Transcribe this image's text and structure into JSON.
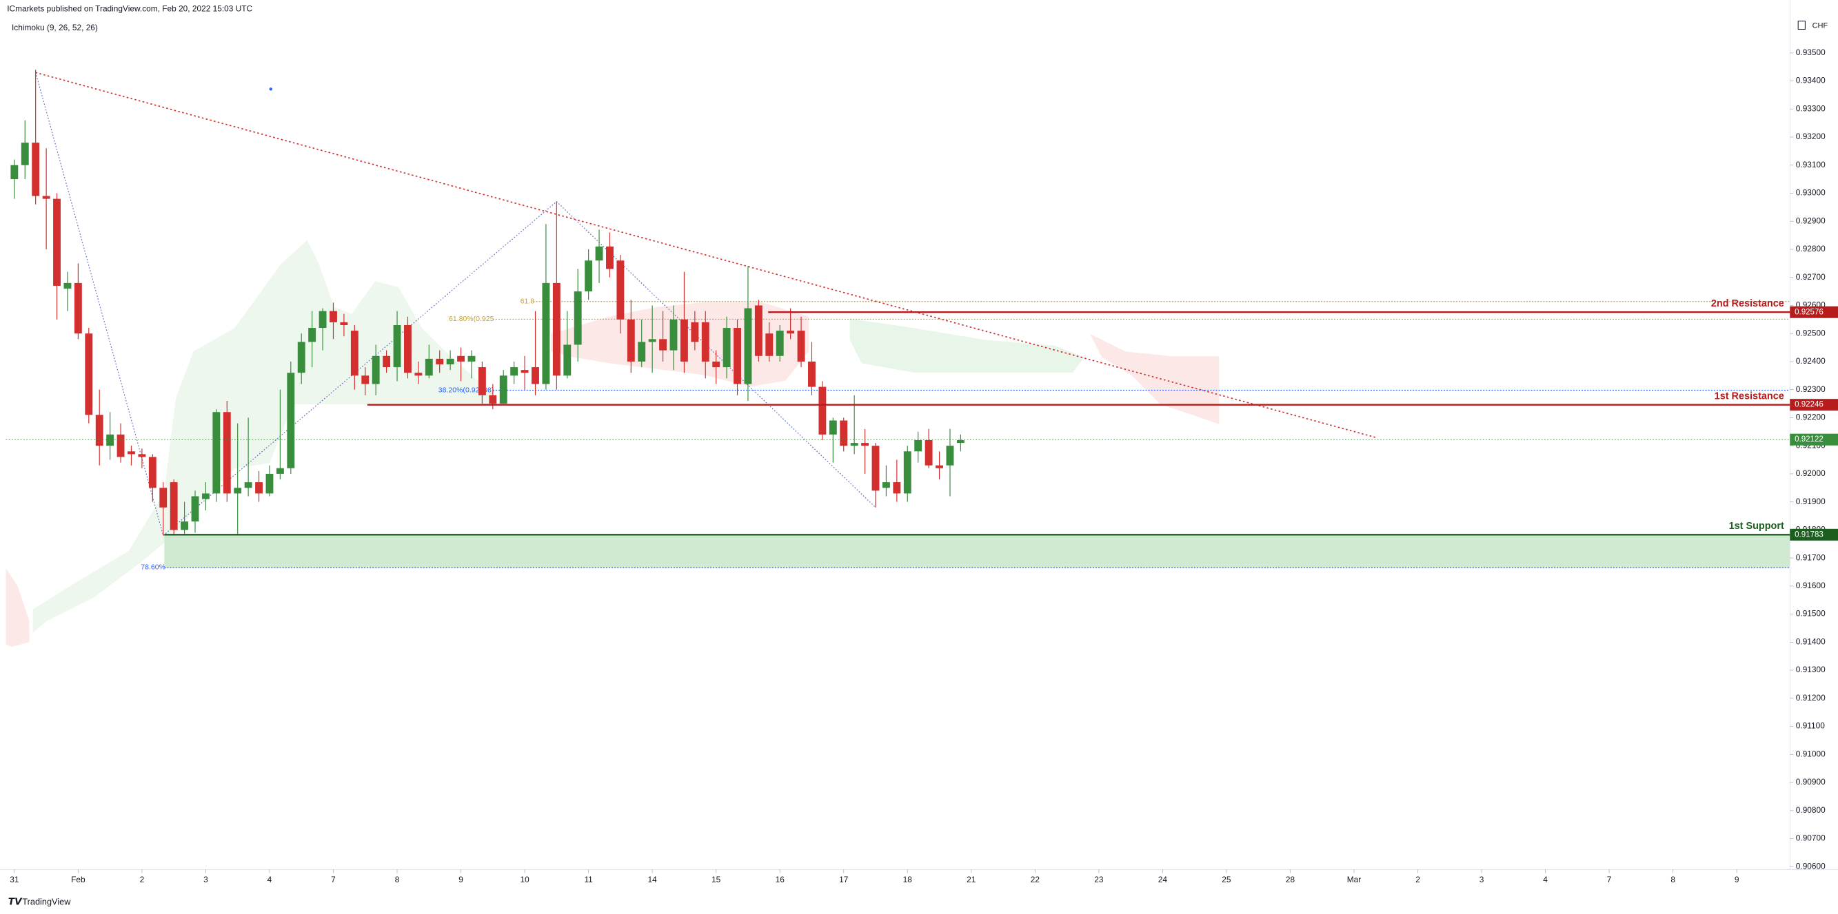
{
  "header": {
    "publisher": "ICmarkets published on TradingView.com, Feb 20, 2022 15:03 UTC",
    "indicator": "Ichimoku (9, 26, 52, 26)",
    "currency": "CHF"
  },
  "footer": {
    "brand": "TradingView"
  },
  "chart_data": {
    "type": "candlestick",
    "up_color": "#388e3c",
    "down_color": "#d32f2f",
    "open": [
      0.9305,
      0.931,
      0.9318,
      0.9299,
      0.9298,
      0.9266,
      0.9268,
      0.925,
      0.9221,
      0.921,
      0.9214,
      0.9208,
      0.9207,
      0.9206,
      0.9195,
      0.9197,
      0.918,
      0.9183,
      0.9191,
      0.9193,
      0.9222,
      0.9193,
      0.9195,
      0.9197,
      0.9193,
      0.92,
      0.9202,
      0.9236,
      0.9247,
      0.9252,
      0.9258,
      0.9254,
      0.9251,
      0.9235,
      0.9232,
      0.9242,
      0.9238,
      0.9253,
      0.9236,
      0.9235,
      0.9241,
      0.9239,
      0.9242,
      0.924,
      0.9238,
      0.9228,
      0.9225,
      0.9235,
      0.9237,
      0.9238,
      0.9232,
      0.9268,
      0.9235,
      0.9246,
      0.9265,
      0.9276,
      0.9281,
      0.9276,
      0.9255,
      0.924,
      0.9247,
      0.9248,
      0.9244,
      0.9255,
      0.9254,
      0.9254,
      0.924,
      0.9238,
      0.9252,
      0.9232,
      0.926,
      0.925,
      0.9242,
      0.9251,
      0.9251,
      0.924,
      0.9231,
      0.9214,
      0.9219,
      0.921,
      0.9211,
      0.921,
      0.9195,
      0.9197,
      0.9193,
      0.9208,
      0.9212,
      0.9203,
      0.9203,
      0.9211
    ],
    "high": [
      0.9312,
      0.9326,
      0.9344,
      0.9316,
      0.93,
      0.9272,
      0.9275,
      0.9252,
      0.923,
      0.9222,
      0.9218,
      0.921,
      0.9209,
      0.9207,
      0.9197,
      0.9198,
      0.919,
      0.9194,
      0.9197,
      0.9223,
      0.9226,
      0.9218,
      0.922,
      0.9201,
      0.9203,
      0.923,
      0.924,
      0.925,
      0.9258,
      0.9259,
      0.9261,
      0.9257,
      0.9253,
      0.9238,
      0.9246,
      0.9244,
      0.9258,
      0.9256,
      0.924,
      0.9246,
      0.9244,
      0.9244,
      0.9245,
      0.9244,
      0.924,
      0.9232,
      0.9237,
      0.924,
      0.9242,
      0.9258,
      0.9289,
      0.9297,
      0.9258,
      0.9273,
      0.928,
      0.9287,
      0.9286,
      0.9278,
      0.9262,
      0.9255,
      0.926,
      0.9258,
      0.926,
      0.9272,
      0.9258,
      0.9258,
      0.9244,
      0.9256,
      0.9255,
      0.9274,
      0.9262,
      0.9254,
      0.9253,
      0.9259,
      0.9256,
      0.9247,
      0.9233,
      0.922,
      0.922,
      0.9228,
      0.9216,
      0.9211,
      0.9203,
      0.9205,
      0.921,
      0.9215,
      0.9216,
      0.9208,
      0.9216,
      0.9214
    ],
    "low": [
      0.9298,
      0.9305,
      0.9296,
      0.928,
      0.9255,
      0.9258,
      0.9248,
      0.9218,
      0.9203,
      0.9205,
      0.9204,
      0.9203,
      0.9202,
      0.919,
      0.9178,
      0.9178,
      0.9178,
      0.9179,
      0.9187,
      0.919,
      0.919,
      0.9178,
      0.9192,
      0.919,
      0.9192,
      0.9198,
      0.92,
      0.9232,
      0.9238,
      0.9244,
      0.9248,
      0.9249,
      0.923,
      0.9228,
      0.9228,
      0.9236,
      0.9233,
      0.9234,
      0.9232,
      0.9234,
      0.9236,
      0.9237,
      0.9233,
      0.9234,
      0.9225,
      0.9223,
      0.9225,
      0.9232,
      0.923,
      0.9228,
      0.923,
      0.923,
      0.9234,
      0.924,
      0.9262,
      0.9268,
      0.927,
      0.925,
      0.9236,
      0.9238,
      0.9236,
      0.924,
      0.9237,
      0.9236,
      0.9244,
      0.9234,
      0.9232,
      0.9234,
      0.9228,
      0.9226,
      0.924,
      0.924,
      0.924,
      0.9248,
      0.9238,
      0.9228,
      0.9212,
      0.9204,
      0.9208,
      0.9207,
      0.92,
      0.9188,
      0.9192,
      0.919,
      0.919,
      0.9204,
      0.9202,
      0.9198,
      0.9192,
      0.9208
    ],
    "close": [
      0.931,
      0.9318,
      0.9299,
      0.9298,
      0.9267,
      0.9268,
      0.925,
      0.9221,
      0.921,
      0.9214,
      0.9206,
      0.9207,
      0.9206,
      0.9195,
      0.9188,
      0.918,
      0.9183,
      0.9192,
      0.9193,
      0.9222,
      0.9193,
      0.9195,
      0.9197,
      0.9193,
      0.92,
      0.9202,
      0.9236,
      0.9247,
      0.9252,
      0.9258,
      0.9254,
      0.9253,
      0.9235,
      0.9232,
      0.9242,
      0.9238,
      0.9253,
      0.9236,
      0.9235,
      0.9241,
      0.9239,
      0.9241,
      0.924,
      0.9242,
      0.9228,
      0.9225,
      0.9235,
      0.9238,
      0.9236,
      0.9232,
      0.9268,
      0.9235,
      0.9246,
      0.9265,
      0.9276,
      0.9281,
      0.9273,
      0.9255,
      0.924,
      0.9247,
      0.9248,
      0.9244,
      0.9255,
      0.924,
      0.9247,
      0.924,
      0.9238,
      0.9252,
      0.9232,
      0.9259,
      0.9242,
      0.9242,
      0.9251,
      0.925,
      0.924,
      0.9231,
      0.9214,
      0.9219,
      0.921,
      0.9211,
      0.921,
      0.9194,
      0.9197,
      0.9193,
      0.9208,
      0.9212,
      0.9203,
      0.9202,
      0.921,
      0.9212
    ],
    "last_price": 0.92122,
    "ylim": [
      0.9059,
      0.9363
    ],
    "yticks": [
      {
        "value": 0.935,
        "label": "0.93500"
      },
      {
        "value": 0.934,
        "label": "0.93400"
      },
      {
        "value": 0.933,
        "label": "0.93300"
      },
      {
        "value": 0.932,
        "label": "0.93200"
      },
      {
        "value": 0.931,
        "label": "0.93100"
      },
      {
        "value": 0.93,
        "label": "0.93000"
      },
      {
        "value": 0.929,
        "label": "0.92900"
      },
      {
        "value": 0.928,
        "label": "0.92800"
      },
      {
        "value": 0.927,
        "label": "0.92700"
      },
      {
        "value": 0.926,
        "label": "0.92600"
      },
      {
        "value": 0.925,
        "label": "0.92500"
      },
      {
        "value": 0.924,
        "label": "0.92400"
      },
      {
        "value": 0.923,
        "label": "0.92300"
      },
      {
        "value": 0.922,
        "label": "0.92200"
      },
      {
        "value": 0.921,
        "label": "0.92100"
      },
      {
        "value": 0.92,
        "label": "0.92000"
      },
      {
        "value": 0.919,
        "label": "0.91900"
      },
      {
        "value": 0.918,
        "label": "0.91800"
      },
      {
        "value": 0.917,
        "label": "0.91700"
      },
      {
        "value": 0.916,
        "label": "0.91600"
      },
      {
        "value": 0.915,
        "label": "0.91500"
      },
      {
        "value": 0.914,
        "label": "0.91400"
      },
      {
        "value": 0.913,
        "label": "0.91300"
      },
      {
        "value": 0.912,
        "label": "0.91200"
      },
      {
        "value": 0.911,
        "label": "0.91100"
      },
      {
        "value": 0.91,
        "label": "0.91000"
      },
      {
        "value": 0.909,
        "label": "0.90900"
      },
      {
        "value": 0.908,
        "label": "0.90800"
      },
      {
        "value": 0.907,
        "label": "0.90700"
      },
      {
        "value": 0.906,
        "label": "0.90600"
      }
    ],
    "xlim": [
      -0.8,
      167
    ],
    "xticks": [
      {
        "value": 0,
        "label": "31"
      },
      {
        "value": 6,
        "label": "Feb"
      },
      {
        "value": 12,
        "label": "2"
      },
      {
        "value": 18,
        "label": "3"
      },
      {
        "value": 24,
        "label": "4"
      },
      {
        "value": 30,
        "label": "7"
      },
      {
        "value": 36,
        "label": "8"
      },
      {
        "value": 42,
        "label": "9"
      },
      {
        "value": 48,
        "label": "10"
      },
      {
        "value": 54,
        "label": "11"
      },
      {
        "value": 60,
        "label": "14"
      },
      {
        "value": 66,
        "label": "15"
      },
      {
        "value": 72,
        "label": "16"
      },
      {
        "value": 78,
        "label": "17"
      },
      {
        "value": 84,
        "label": "18"
      },
      {
        "value": 90,
        "label": "21"
      },
      {
        "value": 96,
        "label": "22"
      },
      {
        "value": 102,
        "label": "23"
      },
      {
        "value": 108,
        "label": "24"
      },
      {
        "value": 114,
        "label": "25"
      },
      {
        "value": 120,
        "label": "28"
      },
      {
        "value": 126,
        "label": "Mar"
      },
      {
        "value": 132,
        "label": "2"
      },
      {
        "value": 138,
        "label": "3"
      },
      {
        "value": 144,
        "label": "4"
      },
      {
        "value": 150,
        "label": "7"
      },
      {
        "value": 156,
        "label": "8"
      },
      {
        "value": 162,
        "label": "9"
      }
    ],
    "levels": [
      {
        "label": "2nd Resistance",
        "value": 0.92576,
        "from_x": 70.9,
        "color": "#b71c1c"
      },
      {
        "label": "1st Resistance",
        "value": 0.92246,
        "from_x": 33.2,
        "color": "#b71c1c"
      },
      {
        "label": "1st Support",
        "value": 0.91783,
        "from_x": 14.1,
        "color": "#1b5e20"
      }
    ],
    "fib_levels": [
      {
        "label": "61.8",
        "value": 0.92614,
        "from_x": 48.8,
        "color": "#c9a227"
      },
      {
        "label": "61.80%(0.925",
        "value": 0.92551,
        "from_x": 45,
        "color": "#c9a227"
      },
      {
        "label": "38.20%(0.92298)",
        "value": 0.92298,
        "from_x": 45,
        "color": "#2962ff"
      },
      {
        "label": "78.60%",
        "value": 0.91666,
        "from_x": 14.1,
        "color": "#2962ff"
      }
    ],
    "trendline": {
      "x": [
        2,
        128
      ],
      "y": [
        0.9343,
        0.9213
      ],
      "color": "#d32f2f"
    },
    "zigzag": {
      "x": [
        2,
        14,
        51,
        81
      ],
      "y": [
        0.9343,
        0.9178,
        0.9297,
        0.9188
      ],
      "color": "#5c6bc0"
    }
  }
}
